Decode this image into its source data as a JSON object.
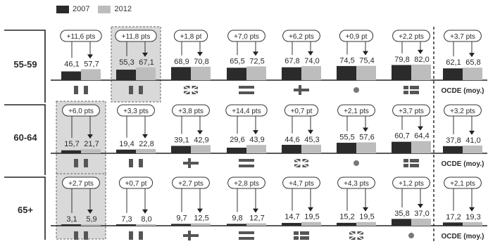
{
  "legend": [
    {
      "label": "2007",
      "color": "#2b2b2b"
    },
    {
      "label": "2012",
      "color": "#bdbdbd"
    }
  ],
  "chart_data": {
    "type": "bar",
    "series_names": [
      "2007",
      "2012"
    ],
    "ylim": [
      0,
      100
    ],
    "average_label": "OCDE (moy.)",
    "groups": [
      {
        "label": "55-59",
        "items": [
          {
            "flag": "italy",
            "v2007": 46.1,
            "v2012": 57.7,
            "t2007": "46,1",
            "t2012": "57,7",
            "change": "+11,6 pts",
            "highlight": false
          },
          {
            "flag": "italy",
            "v2007": 55.3,
            "v2012": 67.1,
            "t2007": "55,3",
            "t2012": "67,1",
            "change": "+11,8 pts",
            "highlight": true
          },
          {
            "flag": "uk",
            "v2007": 68.9,
            "v2012": 70.8,
            "t2007": "68,9",
            "t2012": "70,8",
            "change": "+1,8 pt",
            "highlight": false
          },
          {
            "flag": "stripes",
            "v2007": 65.5,
            "v2012": 72.5,
            "t2007": "65,5",
            "t2012": "72,5",
            "change": "+7,0 pts",
            "highlight": false
          },
          {
            "flag": "cross",
            "v2007": 67.8,
            "v2012": 74.0,
            "t2007": "67,8",
            "t2012": "74,0",
            "change": "+6,2 pts",
            "highlight": false
          },
          {
            "flag": "dot",
            "v2007": 74.5,
            "v2012": 75.4,
            "t2007": "74,5",
            "t2012": "75,4",
            "change": "+0,9 pt",
            "highlight": false
          },
          {
            "flag": "nordic",
            "v2007": 79.8,
            "v2012": 82.0,
            "t2007": "79,8",
            "t2012": "82,0",
            "change": "+2,2 pts",
            "highlight": false
          },
          {
            "flag": "ocde",
            "v2007": 62.1,
            "v2012": 65.8,
            "t2007": "62,1",
            "t2012": "65,8",
            "change": "+3,7 pts",
            "highlight": false
          }
        ]
      },
      {
        "label": "60-64",
        "items": [
          {
            "flag": "italy",
            "v2007": 15.7,
            "v2012": 21.7,
            "t2007": "15,7",
            "t2012": "21,7",
            "change": "+6,0 pts",
            "highlight": true
          },
          {
            "flag": "italy",
            "v2007": 19.4,
            "v2012": 22.8,
            "t2007": "19,4",
            "t2012": "22,8",
            "change": "+3,3 pts",
            "highlight": false
          },
          {
            "flag": "cross",
            "v2007": 39.1,
            "v2012": 42.9,
            "t2007": "39,1",
            "t2012": "42,9",
            "change": "+3,8 pts",
            "highlight": false
          },
          {
            "flag": "stripes",
            "v2007": 29.6,
            "v2012": 43.9,
            "t2007": "29,6",
            "t2012": "43,9",
            "change": "+14,4 pts",
            "highlight": false
          },
          {
            "flag": "uk",
            "v2007": 44.6,
            "v2012": 45.3,
            "t2007": "44,6",
            "t2012": "45,3",
            "change": "+0,7 pt",
            "highlight": false
          },
          {
            "flag": "dot",
            "v2007": 55.5,
            "v2012": 57.6,
            "t2007": "55,5",
            "t2012": "57,6",
            "change": "+2,1 pts",
            "highlight": false
          },
          {
            "flag": "nordic",
            "v2007": 60.7,
            "v2012": 64.4,
            "t2007": "60,7",
            "t2012": "64,4",
            "change": "+3,7 pts",
            "highlight": false
          },
          {
            "flag": "ocde",
            "v2007": 37.8,
            "v2012": 41.0,
            "t2007": "37,8",
            "t2012": "41,0",
            "change": "+3,2 pts",
            "highlight": false
          }
        ]
      },
      {
        "label": "65+",
        "items": [
          {
            "flag": "italy",
            "v2007": 3.1,
            "v2012": 5.9,
            "t2007": "3,1",
            "t2012": "5,9",
            "change": "+2,7 pts",
            "highlight": true
          },
          {
            "flag": "italy",
            "v2007": 7.3,
            "v2012": 8.0,
            "t2007": "7,3",
            "t2012": "8,0",
            "change": "+0,7 pt",
            "highlight": false
          },
          {
            "flag": "cross",
            "v2007": 9.7,
            "v2012": 12.5,
            "t2007": "9,7",
            "t2012": "12,5",
            "change": "+2,7 pts",
            "highlight": false
          },
          {
            "flag": "stripes",
            "v2007": 9.8,
            "v2012": 12.7,
            "t2007": "9,8",
            "t2012": "12,7",
            "change": "+2,8 pts",
            "highlight": false
          },
          {
            "flag": "nordic",
            "v2007": 14.7,
            "v2012": 19.5,
            "t2007": "14,7",
            "t2012": "19,5",
            "change": "+4,7 pts",
            "highlight": false
          },
          {
            "flag": "uk",
            "v2007": 15.2,
            "v2012": 19.5,
            "t2007": "15,2",
            "t2012": "19,5",
            "change": "+4,3 pts",
            "highlight": false
          },
          {
            "flag": "dot",
            "v2007": 35.8,
            "v2012": 37.0,
            "t2007": "35,8",
            "t2012": "37,0",
            "change": "+1,2 pts",
            "highlight": false
          },
          {
            "flag": "ocde",
            "v2007": 17.2,
            "v2012": 19.3,
            "t2007": "17,2",
            "t2012": "19,3",
            "change": "+2,1 pts",
            "highlight": false
          }
        ]
      }
    ]
  }
}
